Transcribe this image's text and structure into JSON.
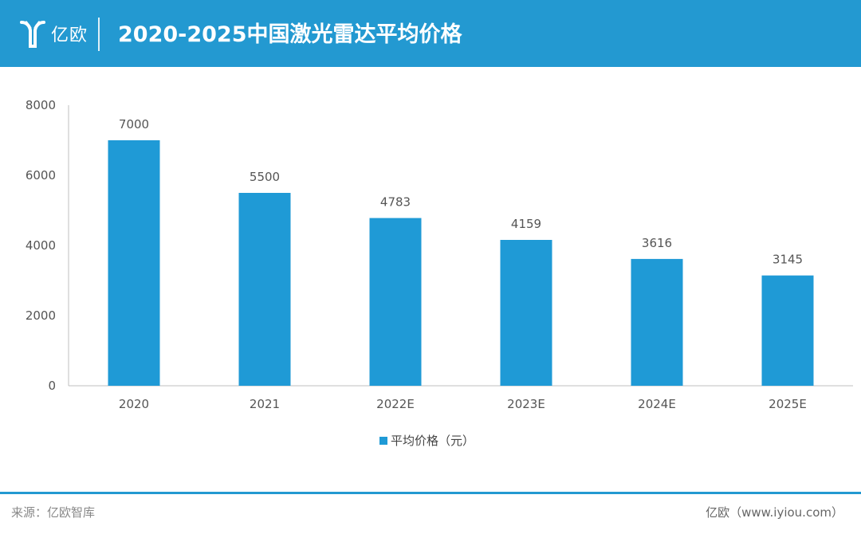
{
  "header": {
    "logo_text": "亿欧",
    "title": "2020-2025中国激光雷达平均价格",
    "background_color": "#2399d1"
  },
  "chart_data": {
    "type": "bar",
    "title": "2020-2025中国激光雷达平均价格",
    "categories": [
      "2020",
      "2021",
      "2022E",
      "2023E",
      "2024E",
      "2025E"
    ],
    "series": [
      {
        "name": "平均价格（元）",
        "values": [
          7000,
          5500,
          4783,
          4159,
          3616,
          3145
        ],
        "color": "#1f9ad6"
      }
    ],
    "xlabel": "",
    "ylabel": "",
    "ylim": [
      0,
      8000
    ],
    "yticks": [
      0,
      2000,
      4000,
      6000,
      8000
    ],
    "grid": false,
    "legend_position": "bottom-center",
    "data_labels": true
  },
  "footer": {
    "source": "来源：亿欧智库",
    "credit": "亿欧（www.iyiou.com）"
  }
}
